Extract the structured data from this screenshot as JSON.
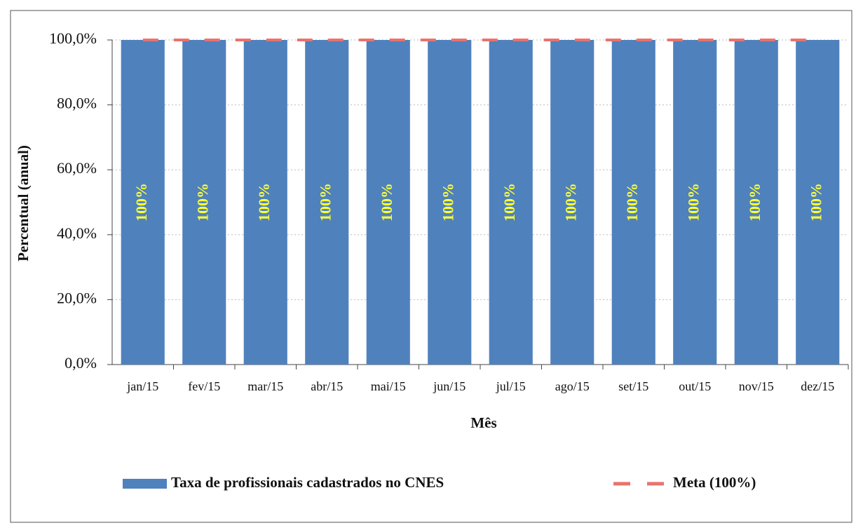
{
  "chart_data": {
    "type": "bar",
    "x_label": "Mês",
    "y_label": "Percentual (anual)",
    "categories": [
      "jan/15",
      "fev/15",
      "mar/15",
      "abr/15",
      "mai/15",
      "jun/15",
      "jul/15",
      "ago/15",
      "set/15",
      "out/15",
      "nov/15",
      "dez/15"
    ],
    "series": [
      {
        "name": "Taxa de profissionais cadastrados no CNES",
        "color": "#4f81bd",
        "values": [
          100,
          100,
          100,
          100,
          100,
          100,
          100,
          100,
          100,
          100,
          100,
          100
        ],
        "value_labels": [
          "100%",
          "100%",
          "100%",
          "100%",
          "100%",
          "100%",
          "100%",
          "100%",
          "100%",
          "100%",
          "100%",
          "100%"
        ]
      },
      {
        "name": "Meta (100%)",
        "color": "#e8736e",
        "type": "line",
        "values": [
          100,
          100,
          100,
          100,
          100,
          100,
          100,
          100,
          100,
          100,
          100,
          100
        ]
      }
    ],
    "ylim": [
      0,
      100
    ],
    "yticks": [
      {
        "value": 0,
        "label": "0,0%"
      },
      {
        "value": 20,
        "label": "20,0%"
      },
      {
        "value": 40,
        "label": "40,0%"
      },
      {
        "value": 60,
        "label": "60,0%"
      },
      {
        "value": 80,
        "label": "80,0%"
      },
      {
        "value": 100,
        "label": "100,0%"
      }
    ],
    "grid": true,
    "legend": "bottom"
  }
}
